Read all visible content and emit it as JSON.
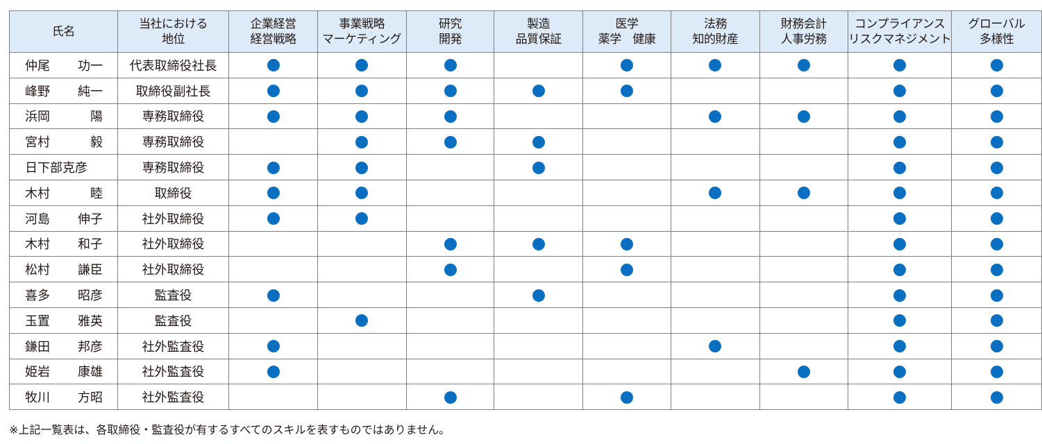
{
  "header": {
    "name": "氏名",
    "position": [
      "当社における",
      "地位"
    ]
  },
  "skills": [
    [
      "企業経営",
      "経営戦略"
    ],
    [
      "事業戦略",
      "マーケティング"
    ],
    [
      "研究",
      "開発"
    ],
    [
      "製造",
      "品質保証"
    ],
    [
      "医学",
      "薬学　健康"
    ],
    [
      "法務",
      "知的財産"
    ],
    [
      "財務会計",
      "人事労務"
    ],
    [
      "コンプライアンス",
      "リスクマネジメント"
    ],
    [
      "グローバル",
      "多様性"
    ]
  ],
  "members": [
    {
      "family": "仲尾",
      "given": "功一",
      "position": "代表取締役社長",
      "skills": [
        1,
        1,
        1,
        0,
        1,
        1,
        1,
        1,
        1
      ]
    },
    {
      "family": "峰野",
      "given": "純一",
      "position": "取締役副社長",
      "skills": [
        1,
        1,
        1,
        1,
        1,
        0,
        0,
        1,
        1
      ]
    },
    {
      "family": "浜岡",
      "given": "陽",
      "position": "専務取締役",
      "skills": [
        1,
        1,
        1,
        0,
        0,
        1,
        1,
        1,
        1
      ]
    },
    {
      "family": "宮村",
      "given": "毅",
      "position": "専務取締役",
      "skills": [
        0,
        1,
        1,
        1,
        0,
        0,
        0,
        1,
        1
      ]
    },
    {
      "family": "日下部克彦",
      "given": "",
      "position": "専務取締役",
      "skills": [
        1,
        1,
        0,
        1,
        0,
        0,
        0,
        1,
        1
      ]
    },
    {
      "family": "木村",
      "given": "睦",
      "position": "取締役",
      "skills": [
        1,
        1,
        0,
        0,
        0,
        1,
        1,
        1,
        1
      ]
    },
    {
      "family": "河島",
      "given": "伸子",
      "position": "社外取締役",
      "skills": [
        1,
        1,
        0,
        0,
        0,
        0,
        0,
        1,
        1
      ]
    },
    {
      "family": "木村",
      "given": "和子",
      "position": "社外取締役",
      "skills": [
        0,
        0,
        1,
        1,
        1,
        0,
        0,
        1,
        1
      ]
    },
    {
      "family": "松村",
      "given": "謙臣",
      "position": "社外取締役",
      "skills": [
        0,
        0,
        1,
        0,
        1,
        0,
        0,
        1,
        1
      ]
    },
    {
      "family": "喜多",
      "given": "昭彦",
      "position": "監査役",
      "skills": [
        1,
        0,
        0,
        1,
        0,
        0,
        0,
        1,
        1
      ]
    },
    {
      "family": "玉置",
      "given": "雅英",
      "position": "監査役",
      "skills": [
        0,
        1,
        0,
        0,
        0,
        0,
        0,
        1,
        1
      ]
    },
    {
      "family": "鎌田",
      "given": "邦彦",
      "position": "社外監査役",
      "skills": [
        1,
        0,
        0,
        0,
        0,
        1,
        0,
        1,
        1
      ]
    },
    {
      "family": "姫岩",
      "given": "康雄",
      "position": "社外監査役",
      "skills": [
        1,
        0,
        0,
        0,
        0,
        0,
        1,
        1,
        1
      ]
    },
    {
      "family": "牧川",
      "given": "方昭",
      "position": "社外監査役",
      "skills": [
        0,
        0,
        1,
        0,
        1,
        0,
        0,
        1,
        1
      ]
    }
  ],
  "note": "※上記一覧表は、各取締役・監査役が有するすべてのスキルを表すものではありません。",
  "colors": {
    "dot": "#0a6fc0",
    "header_bg": "#dcebf7",
    "border": "#7f7f7f"
  }
}
